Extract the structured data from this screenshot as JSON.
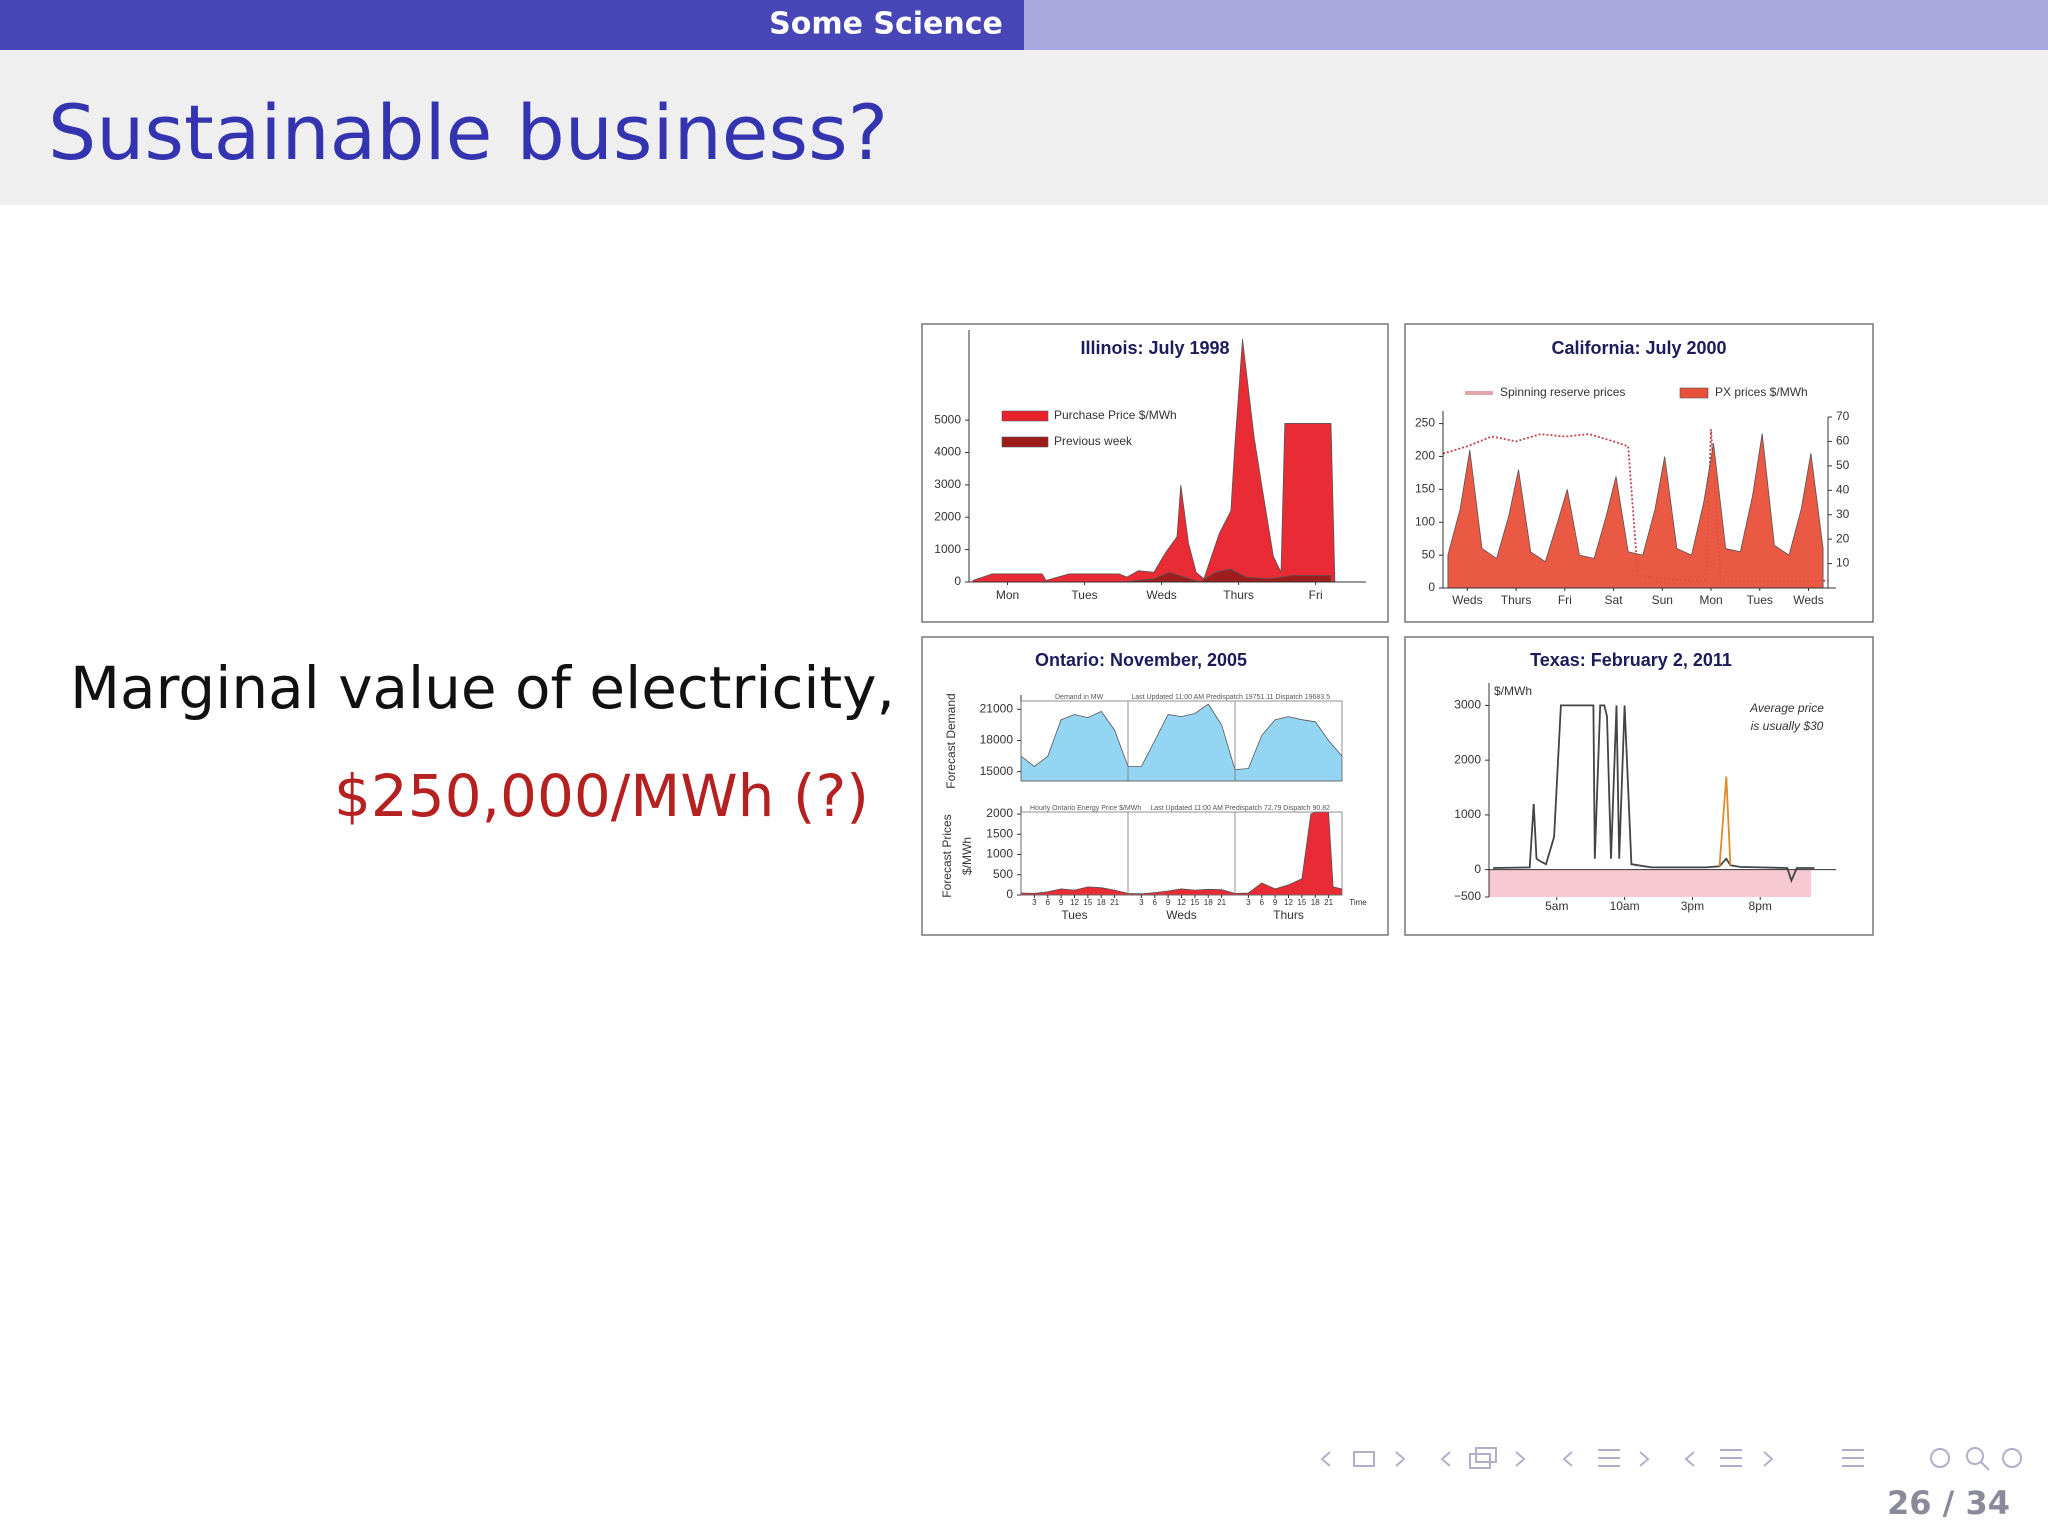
{
  "header": {
    "section": "Some Science"
  },
  "title": "Sustainable business?",
  "body": {
    "line1": "Marginal value of electricity,",
    "line2": "$250,000/MWh (?)"
  },
  "footer": {
    "page": "26 / 34"
  },
  "chart_data": [
    {
      "type": "area",
      "title": "Illinois: July 1998",
      "xlim": [
        0,
        5.05
      ],
      "ylim": [
        0,
        7600
      ],
      "yticks": [
        0,
        1000,
        2000,
        3000,
        4000,
        5000
      ],
      "xticks": [
        {
          "value": 0.5,
          "label": "Mon"
        },
        {
          "value": 1.5,
          "label": "Tues"
        },
        {
          "value": 2.5,
          "label": "Weds"
        },
        {
          "value": 3.5,
          "label": "Thurs"
        },
        {
          "value": 4.5,
          "label": "Fri"
        }
      ],
      "series": [
        {
          "name": "Purchase Price $/MWh",
          "color": "#e8202a",
          "x": [
            0.05,
            0.3,
            0.95,
            1.0,
            1.3,
            1.95,
            2.05,
            2.2,
            2.4,
            2.55,
            2.7,
            2.75,
            2.85,
            2.95,
            3.05,
            3.25,
            3.4,
            3.45,
            3.55,
            3.7,
            3.8,
            3.95,
            4.05,
            4.1,
            4.7,
            4.75
          ],
          "values": [
            50,
            250,
            250,
            50,
            250,
            250,
            150,
            350,
            300,
            900,
            1400,
            3000,
            1200,
            300,
            100,
            1500,
            2200,
            4200,
            7500,
            4500,
            3000,
            800,
            300,
            4900,
            4900,
            0
          ]
        },
        {
          "name": "Previous week",
          "color": "#9c1c1c",
          "x": [
            0.05,
            2.0,
            2.4,
            2.6,
            2.8,
            3.0,
            3.2,
            3.4,
            3.6,
            3.9,
            4.2,
            4.7
          ],
          "values": [
            0,
            0,
            100,
            300,
            150,
            0,
            300,
            400,
            150,
            100,
            200,
            200
          ]
        }
      ]
    },
    {
      "type": "area",
      "title": "California: July 2000",
      "xlim": [
        0,
        7.9
      ],
      "ylim": [
        0,
        260
      ],
      "yticks": [
        0,
        50,
        100,
        150,
        200,
        250
      ],
      "y2lim": [
        0,
        70
      ],
      "y2ticks": [
        10,
        20,
        30,
        40,
        50,
        60,
        70
      ],
      "xticks": [
        {
          "value": 0.5,
          "label": "Weds"
        },
        {
          "value": 1.5,
          "label": "Thurs"
        },
        {
          "value": 2.5,
          "label": "Fri"
        },
        {
          "value": 3.5,
          "label": "Sat"
        },
        {
          "value": 4.5,
          "label": "Sun"
        },
        {
          "value": 5.5,
          "label": "Mon"
        },
        {
          "value": 6.5,
          "label": "Tues"
        },
        {
          "value": 7.5,
          "label": "Weds"
        }
      ],
      "series": [
        {
          "name": "Spinning reserve prices",
          "color": "#c2464e",
          "axis": "y2",
          "line_style": "dotted",
          "x": [
            0,
            0.5,
            1,
            1.5,
            2,
            2.5,
            3,
            3.5,
            3.8,
            4,
            5,
            5.4,
            5.5,
            5.7,
            7.9
          ],
          "values": [
            55,
            58,
            62,
            60,
            63,
            62,
            63,
            60,
            58,
            5,
            3,
            3,
            65,
            3,
            3
          ]
        },
        {
          "name": "PX prices $/MWh",
          "color": "#e8503a",
          "x": [
            0.1,
            0.35,
            0.55,
            0.8,
            1.1,
            1.35,
            1.55,
            1.8,
            2.1,
            2.35,
            2.55,
            2.8,
            3.1,
            3.35,
            3.55,
            3.8,
            4.1,
            4.35,
            4.55,
            4.8,
            5.1,
            5.35,
            5.55,
            5.8,
            6.1,
            6.35,
            6.55,
            6.8,
            7.1,
            7.35,
            7.55,
            7.8
          ],
          "values": [
            50,
            120,
            210,
            60,
            45,
            110,
            180,
            55,
            40,
            100,
            150,
            50,
            45,
            110,
            170,
            55,
            50,
            120,
            200,
            60,
            50,
            130,
            220,
            60,
            55,
            140,
            235,
            65,
            50,
            120,
            205,
            60
          ]
        }
      ]
    },
    {
      "type": "area",
      "title": "Ontario: November, 2005",
      "ylabel": [
        "Forecast Demand"
      ],
      "annotations": [
        "Demand in MW",
        "Last Updated  11:00 AM   Predispatch  19751.11   Dispatch  19683.5"
      ],
      "xlim": [
        0,
        72
      ],
      "ylim": [
        14100,
        21800
      ],
      "yticks": [
        15000,
        18000,
        21000
      ],
      "series": [
        {
          "color": "#8fd3f3",
          "x": [
            0,
            3,
            6,
            9,
            12,
            15,
            18,
            21,
            24,
            27,
            30,
            33,
            36,
            39,
            42,
            45,
            48,
            51,
            54,
            57,
            60,
            63,
            66,
            69,
            72
          ],
          "values": [
            16500,
            15500,
            16500,
            20000,
            20500,
            20200,
            20800,
            19000,
            15500,
            15500,
            18000,
            20500,
            20300,
            20600,
            21500,
            19500,
            15200,
            15300,
            18500,
            20000,
            20300,
            20000,
            19800,
            18000,
            16500
          ]
        }
      ]
    },
    {
      "type": "area",
      "ylabel": [
        "Forecast Prices",
        "$/MWh"
      ],
      "xlabel": "Time",
      "annotations": [
        "Hourly Ontario Energy Price $/MWh",
        "Last Updated  11:00 AM   Predispatch  72.79   Dispatch  90.82"
      ],
      "xlim": [
        0,
        72
      ],
      "ylim": [
        0,
        2050
      ],
      "yticks": [
        0,
        500,
        1000,
        1500,
        2000
      ],
      "xticks": [
        3,
        6,
        9,
        12,
        15,
        18,
        21,
        {
          "value": 27,
          "label": "3"
        },
        {
          "value": 30,
          "label": "6"
        },
        {
          "value": 33,
          "label": "9"
        },
        {
          "value": 36,
          "label": "12"
        },
        {
          "value": 39,
          "label": "15"
        },
        {
          "value": 42,
          "label": "18"
        },
        {
          "value": 45,
          "label": "21"
        },
        {
          "value": 51,
          "label": "3"
        },
        {
          "value": 54,
          "label": "6"
        },
        {
          "value": 57,
          "label": "9"
        },
        {
          "value": 60,
          "label": "12"
        },
        {
          "value": 63,
          "label": "15"
        },
        {
          "value": 66,
          "label": "18"
        },
        {
          "value": 69,
          "label": "21"
        }
      ],
      "xgroups": [
        {
          "value": 12,
          "label": "Tues"
        },
        {
          "value": 36,
          "label": "Weds"
        },
        {
          "value": 60,
          "label": "Thurs"
        }
      ],
      "series": [
        {
          "color": "#e8202a",
          "x": [
            0,
            3,
            6,
            9,
            12,
            15,
            18,
            21,
            24,
            27,
            30,
            33,
            36,
            39,
            42,
            45,
            48,
            51,
            54,
            57,
            60,
            63,
            65,
            66,
            69,
            70,
            72
          ],
          "values": [
            50,
            40,
            80,
            150,
            120,
            200,
            180,
            120,
            40,
            30,
            60,
            100,
            150,
            120,
            140,
            130,
            40,
            50,
            300,
            150,
            250,
            400,
            2000,
            2050,
            2050,
            200,
            150
          ]
        }
      ]
    },
    {
      "type": "line",
      "title": "Texas: February 2, 2011",
      "ylabel": [
        "$/MWh"
      ],
      "annotations": [
        "Average price",
        "is usually $30"
      ],
      "xlim": [
        0,
        25
      ],
      "ylim": [
        -500,
        3300
      ],
      "yticks": [
        {
          "value": -500,
          "label": "−500"
        },
        0,
        1000,
        2000,
        3000
      ],
      "xticks": [
        {
          "value": 5,
          "label": "5am"
        },
        {
          "value": 10,
          "label": "10am"
        },
        {
          "value": 15,
          "label": "3pm"
        },
        {
          "value": 20,
          "label": "8pm"
        }
      ],
      "x": [
        0.3,
        3.0,
        3.3,
        3.5,
        3.8,
        4.2,
        4.8,
        5.3,
        5.6,
        7.7,
        7.8,
        8.2,
        8.5,
        8.7,
        9.0,
        9.4,
        9.6,
        10.0,
        10.5,
        11.0,
        12.0,
        16.0,
        17.0,
        17.5,
        17.8,
        18.5,
        20.0,
        22.0,
        22.3,
        22.7,
        24.0
      ],
      "series": [
        {
          "color": "#444444",
          "values": [
            30,
            40,
            1200,
            200,
            150,
            100,
            600,
            3000,
            3000,
            3000,
            200,
            3000,
            3000,
            2800,
            200,
            3000,
            200,
            3000,
            100,
            80,
            40,
            40,
            60,
            200,
            80,
            50,
            40,
            30,
            -200,
            30,
            30
          ]
        },
        {
          "color": "#e08a2a",
          "values": [
            null,
            null,
            null,
            null,
            null,
            null,
            null,
            null,
            null,
            null,
            null,
            null,
            null,
            null,
            null,
            null,
            null,
            null,
            null,
            null,
            null,
            null,
            60,
            1700,
            80,
            null,
            null,
            null,
            null,
            null,
            null
          ]
        }
      ]
    }
  ]
}
